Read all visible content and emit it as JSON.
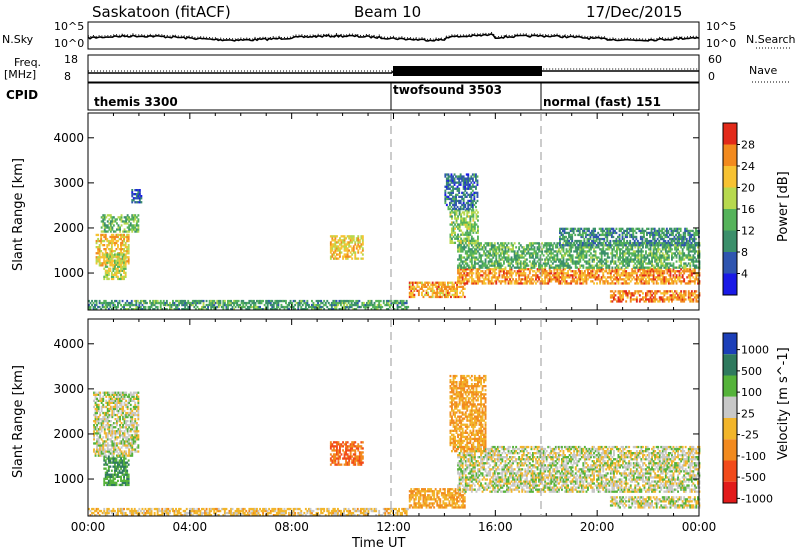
{
  "header": {
    "station": "Saskatoon (fitACF)",
    "beam": "Beam 10",
    "date": "17/Dec/2015"
  },
  "noise_panel": {
    "left_label": "N.Sky",
    "right_label": "N.Search",
    "tick_top": "10^5",
    "tick_bottom": "10^0"
  },
  "freq_panel": {
    "left_label_1": "Freq.",
    "left_label_2": "[MHz]",
    "tick_top": "18",
    "tick_bottom": "8",
    "right_label": "Nave",
    "right_tick_top": "60",
    "right_tick_bottom": "0"
  },
  "cpid": {
    "label": "CPID",
    "segments": [
      {
        "name": "themis 3300",
        "start_hour": 0,
        "end_hour": 12
      },
      {
        "name": "twofsound 3503",
        "start_hour": 12,
        "end_hour": 18
      },
      {
        "name": "normal (fast) 151",
        "start_hour": 18,
        "end_hour": 24
      }
    ]
  },
  "chart_data": [
    {
      "type": "heatmap",
      "title": "Power",
      "xlabel": "Time UT",
      "ylabel": "Slant Range [km]",
      "xlim": [
        0,
        24
      ],
      "ylim": [
        180,
        4550
      ],
      "x_ticks": [
        "00:00",
        "04:00",
        "08:00",
        "12:00",
        "16:00",
        "20:00",
        "00:00"
      ],
      "y_ticks": [
        1000,
        2000,
        3000,
        4000
      ],
      "colorbar": {
        "label": "Power [dB]",
        "levels": [
          0,
          4,
          8,
          12,
          16,
          20,
          24,
          28,
          32
        ],
        "tick_labels": [
          "4",
          "8",
          "12",
          "16",
          "20",
          "24",
          "28"
        ],
        "colors": [
          "#1a1ae6",
          "#2f55b0",
          "#3b8f6b",
          "#55b35a",
          "#b7d94e",
          "#f7c232",
          "#f28a1e",
          "#e22a1a"
        ]
      },
      "regions": [
        {
          "t0": 0.3,
          "t1": 1.6,
          "r0": 1150,
          "r1": 1850,
          "value": 22
        },
        {
          "t0": 0.6,
          "t1": 1.5,
          "r0": 850,
          "r1": 1400,
          "value": 18
        },
        {
          "t0": 1.7,
          "t1": 2.1,
          "r0": 2550,
          "r1": 2850,
          "value": 6
        },
        {
          "t0": 0.5,
          "t1": 2.0,
          "r0": 1900,
          "r1": 2300,
          "value": 14
        },
        {
          "t0": 9.5,
          "t1": 10.8,
          "r0": 1300,
          "r1": 1800,
          "value": 21
        },
        {
          "t0": 12.6,
          "t1": 14.8,
          "r0": 450,
          "r1": 800,
          "value": 24
        },
        {
          "t0": 14.5,
          "t1": 24.0,
          "r0": 750,
          "r1": 1100,
          "value": 25
        },
        {
          "t0": 14.5,
          "t1": 24.0,
          "r0": 1100,
          "r1": 1650,
          "value": 13
        },
        {
          "t0": 14.2,
          "t1": 15.3,
          "r0": 1650,
          "r1": 2400,
          "value": 16
        },
        {
          "t0": 18.5,
          "t1": 24.0,
          "r0": 1600,
          "r1": 2000,
          "value": 10
        },
        {
          "t0": 20.5,
          "t1": 24.0,
          "r0": 350,
          "r1": 600,
          "value": 26
        },
        {
          "t0": 14.0,
          "t1": 15.3,
          "r0": 2400,
          "r1": 3200,
          "value": 8
        },
        {
          "t0": 0.0,
          "t1": 12.6,
          "r0": 180,
          "r1": 380,
          "value": 12
        }
      ]
    },
    {
      "type": "heatmap",
      "title": "Velocity",
      "xlabel": "Time UT",
      "ylabel": "Slant Range [km]",
      "xlim": [
        0,
        24
      ],
      "ylim": [
        180,
        4550
      ],
      "x_ticks": [
        "00:00",
        "04:00",
        "08:00",
        "12:00",
        "16:00",
        "20:00",
        "00:00"
      ],
      "y_ticks": [
        1000,
        2000,
        3000,
        4000
      ],
      "colorbar": {
        "label": "Velocity [m s^-1]",
        "tick_labels": [
          "1000",
          "500",
          "100",
          "25",
          "-25",
          "-100",
          "-500",
          "-1000"
        ],
        "colors": [
          "#1c3fb8",
          "#2f7a5e",
          "#55b33a",
          "#c8c8c8",
          "#f2b52a",
          "#f28a1e",
          "#f24a1a",
          "#e21a1a"
        ]
      },
      "regions": [
        {
          "t0": 0.6,
          "t1": 1.6,
          "r0": 850,
          "r1": 1500,
          "value": 100
        },
        {
          "t0": 0.2,
          "t1": 2.0,
          "r0": 1500,
          "r1": 2900,
          "value": 0
        },
        {
          "t0": 9.5,
          "t1": 10.8,
          "r0": 1300,
          "r1": 1800,
          "value": -500
        },
        {
          "t0": 12.6,
          "t1": 14.8,
          "r0": 350,
          "r1": 800,
          "value": -100
        },
        {
          "t0": 14.5,
          "t1": 24.0,
          "r0": 700,
          "r1": 1700,
          "value": 0
        },
        {
          "t0": 14.2,
          "t1": 15.6,
          "r0": 1600,
          "r1": 3300,
          "value": -100
        },
        {
          "t0": 20.5,
          "t1": 24.0,
          "r0": 350,
          "r1": 600,
          "value": 0
        },
        {
          "t0": 0.0,
          "t1": 12.6,
          "r0": 180,
          "r1": 350,
          "value": -50
        }
      ]
    }
  ]
}
